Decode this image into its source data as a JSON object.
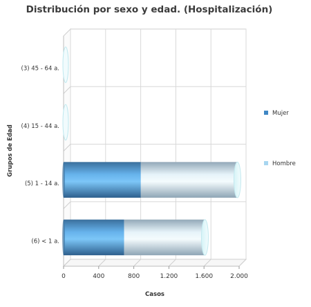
{
  "chart_data": {
    "type": "bar",
    "orientation": "horizontal",
    "stacked": true,
    "title": "Distribución por sexo y edad. (Hospitalización)",
    "xlabel": "Casos",
    "ylabel": "Grupos de Edad",
    "categories": [
      "(3) 45 - 64 a.",
      "(4) 15 - 44 a.",
      "(5) 1 - 14 a.",
      "(6) < 1 a."
    ],
    "series": [
      {
        "name": "Mujer",
        "color": "#3f87c4",
        "values": [
          0,
          0,
          880,
          690
        ]
      },
      {
        "name": "Hombre",
        "color": "#a8d6f0",
        "values": [
          0,
          0,
          1100,
          920
        ]
      }
    ],
    "xlim": [
      0,
      2000
    ],
    "xticks": [
      0,
      400,
      800,
      1200,
      1600,
      2000
    ],
    "xtick_labels": [
      "0",
      "400",
      "800",
      "1.200",
      "1.600",
      "2.000"
    ],
    "legend_position": "right",
    "grid": true
  }
}
